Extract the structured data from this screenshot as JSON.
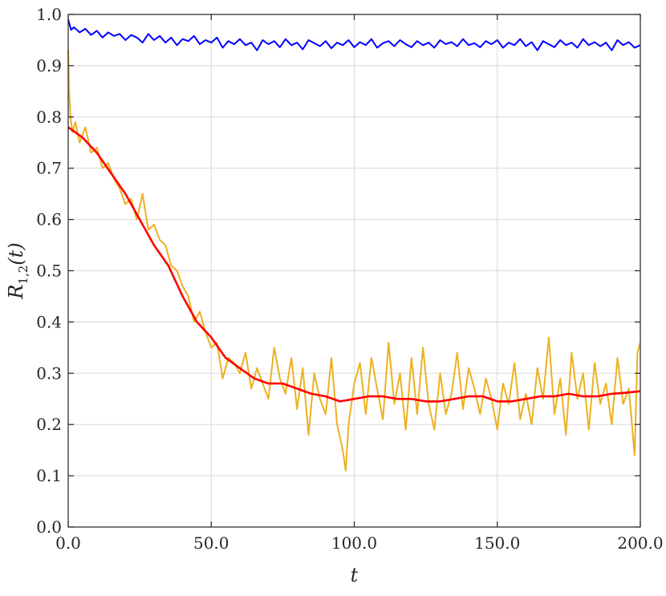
{
  "chart_data": {
    "type": "line",
    "xlabel": "t",
    "ylabel": {
      "main": "R",
      "sub": "1,2",
      "arg": "(t)"
    },
    "xlim": [
      0,
      200
    ],
    "ylim": [
      0,
      1
    ],
    "grid": true,
    "x_ticks": [
      0,
      50,
      100,
      150,
      200
    ],
    "x_tick_labels": [
      "0.0",
      "50.0",
      "100.0",
      "150.0",
      "200.0"
    ],
    "y_ticks": [
      0,
      0.1,
      0.2,
      0.3,
      0.4,
      0.5,
      0.6,
      0.7,
      0.8,
      0.9,
      1.0
    ],
    "y_tick_labels": [
      "0.0",
      "0.1",
      "0.2",
      "0.3",
      "0.4",
      "0.5",
      "0.6",
      "0.7",
      "0.8",
      "0.9",
      "1.0"
    ],
    "series": [
      {
        "color": "#edb120",
        "x": [
          0,
          0.3,
          0.8,
          1.5,
          2.5,
          4,
          6,
          8,
          10,
          12,
          14,
          16,
          18,
          20,
          22,
          24,
          26,
          28,
          30,
          32,
          34,
          36,
          38,
          40,
          42,
          44,
          46,
          48,
          50,
          52,
          54,
          56,
          58,
          60,
          62,
          64,
          66,
          68,
          70,
          72,
          74,
          76,
          78,
          80,
          82,
          84,
          86,
          88,
          90,
          92,
          94,
          96,
          97,
          98,
          100,
          102,
          104,
          106,
          108,
          110,
          112,
          114,
          116,
          118,
          120,
          122,
          124,
          126,
          128,
          130,
          132,
          134,
          136,
          138,
          140,
          142,
          144,
          146,
          148,
          150,
          152,
          154,
          156,
          158,
          160,
          162,
          164,
          166,
          168,
          170,
          172,
          174,
          176,
          178,
          180,
          182,
          184,
          186,
          188,
          190,
          192,
          194,
          196,
          198,
          199,
          200
        ],
        "y": [
          0.93,
          0.85,
          0.8,
          0.77,
          0.79,
          0.75,
          0.78,
          0.73,
          0.74,
          0.7,
          0.71,
          0.68,
          0.66,
          0.63,
          0.64,
          0.6,
          0.65,
          0.58,
          0.59,
          0.56,
          0.55,
          0.51,
          0.5,
          0.47,
          0.45,
          0.4,
          0.42,
          0.38,
          0.35,
          0.36,
          0.29,
          0.33,
          0.32,
          0.3,
          0.34,
          0.27,
          0.31,
          0.28,
          0.25,
          0.35,
          0.29,
          0.26,
          0.33,
          0.23,
          0.31,
          0.18,
          0.3,
          0.25,
          0.22,
          0.33,
          0.2,
          0.15,
          0.11,
          0.2,
          0.28,
          0.32,
          0.22,
          0.33,
          0.27,
          0.21,
          0.36,
          0.24,
          0.3,
          0.19,
          0.33,
          0.22,
          0.35,
          0.24,
          0.19,
          0.3,
          0.22,
          0.26,
          0.34,
          0.23,
          0.31,
          0.27,
          0.22,
          0.29,
          0.25,
          0.19,
          0.28,
          0.24,
          0.32,
          0.21,
          0.26,
          0.2,
          0.31,
          0.25,
          0.37,
          0.22,
          0.29,
          0.18,
          0.34,
          0.25,
          0.3,
          0.19,
          0.32,
          0.24,
          0.28,
          0.2,
          0.33,
          0.24,
          0.27,
          0.14,
          0.34,
          0.36
        ]
      },
      {
        "color": "#ff0000",
        "x": [
          0,
          5,
          10,
          15,
          20,
          25,
          30,
          35,
          40,
          45,
          50,
          55,
          60,
          65,
          70,
          75,
          80,
          85,
          90,
          95,
          100,
          105,
          110,
          115,
          120,
          125,
          130,
          135,
          140,
          145,
          150,
          155,
          160,
          165,
          170,
          175,
          180,
          185,
          190,
          195,
          200
        ],
        "y": [
          0.78,
          0.76,
          0.73,
          0.69,
          0.65,
          0.6,
          0.55,
          0.51,
          0.45,
          0.4,
          0.37,
          0.33,
          0.31,
          0.29,
          0.28,
          0.28,
          0.27,
          0.26,
          0.255,
          0.245,
          0.25,
          0.255,
          0.255,
          0.25,
          0.25,
          0.245,
          0.245,
          0.25,
          0.255,
          0.255,
          0.245,
          0.245,
          0.25,
          0.255,
          0.255,
          0.26,
          0.255,
          0.255,
          0.26,
          0.262,
          0.265
        ]
      },
      {
        "color": "#0000ff",
        "x": [
          0,
          1,
          2,
          4,
          6,
          8,
          10,
          12,
          14,
          16,
          18,
          20,
          22,
          24,
          26,
          28,
          30,
          32,
          34,
          36,
          38,
          40,
          42,
          44,
          46,
          48,
          50,
          52,
          54,
          56,
          58,
          60,
          62,
          64,
          66,
          68,
          70,
          72,
          74,
          76,
          78,
          80,
          82,
          84,
          86,
          88,
          90,
          92,
          94,
          96,
          98,
          100,
          102,
          104,
          106,
          108,
          110,
          112,
          114,
          116,
          118,
          120,
          122,
          124,
          126,
          128,
          130,
          132,
          134,
          136,
          138,
          140,
          142,
          144,
          146,
          148,
          150,
          152,
          154,
          156,
          158,
          160,
          162,
          164,
          166,
          168,
          170,
          172,
          174,
          176,
          178,
          180,
          182,
          184,
          186,
          188,
          190,
          192,
          194,
          196,
          198,
          200
        ],
        "y": [
          0.99,
          0.97,
          0.975,
          0.965,
          0.972,
          0.96,
          0.968,
          0.955,
          0.965,
          0.958,
          0.962,
          0.95,
          0.96,
          0.955,
          0.945,
          0.962,
          0.95,
          0.958,
          0.945,
          0.955,
          0.94,
          0.952,
          0.948,
          0.958,
          0.942,
          0.95,
          0.945,
          0.955,
          0.935,
          0.948,
          0.942,
          0.952,
          0.94,
          0.945,
          0.93,
          0.95,
          0.942,
          0.948,
          0.936,
          0.952,
          0.94,
          0.945,
          0.932,
          0.95,
          0.944,
          0.938,
          0.948,
          0.934,
          0.945,
          0.94,
          0.95,
          0.936,
          0.946,
          0.94,
          0.952,
          0.935,
          0.944,
          0.948,
          0.938,
          0.95,
          0.942,
          0.936,
          0.948,
          0.94,
          0.945,
          0.935,
          0.95,
          0.942,
          0.946,
          0.938,
          0.952,
          0.94,
          0.944,
          0.936,
          0.948,
          0.942,
          0.95,
          0.935,
          0.945,
          0.94,
          0.952,
          0.938,
          0.946,
          0.93,
          0.948,
          0.942,
          0.936,
          0.95,
          0.94,
          0.945,
          0.935,
          0.952,
          0.94,
          0.946,
          0.938,
          0.945,
          0.93,
          0.95,
          0.94,
          0.946,
          0.935,
          0.94
        ]
      }
    ]
  }
}
